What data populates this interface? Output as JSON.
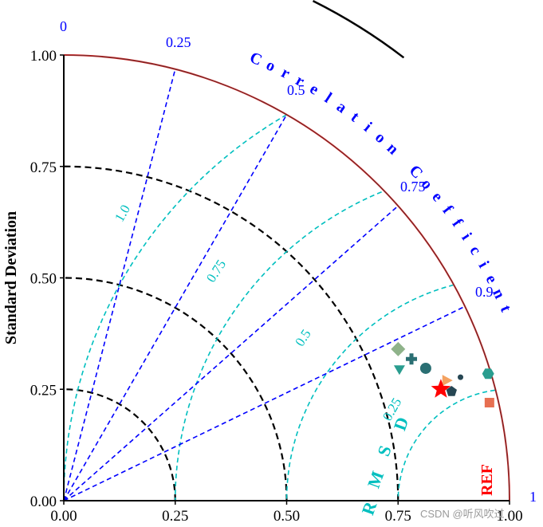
{
  "chart_data": {
    "type": "taylor_diagram",
    "ylabel": "Standard Deviation",
    "arc_label": "Correlation Coefficient",
    "rmsd_label": "RMSD",
    "ref_label": "REF",
    "xlim": [
      0,
      1.0
    ],
    "ylim": [
      0,
      1.0
    ],
    "x_ticks": [
      "0.00",
      "0.25",
      "0.50",
      "0.75",
      "1.00"
    ],
    "y_ticks": [
      "0.00",
      "0.25",
      "0.50",
      "0.75",
      "1.00"
    ],
    "x_tick_values": [
      0,
      0.25,
      0.5,
      0.75,
      1.0
    ],
    "y_tick_values": [
      0,
      0.25,
      0.5,
      0.75,
      1.0
    ],
    "correlation_ticks": [
      {
        "value": 0,
        "label": "0"
      },
      {
        "value": 0.25,
        "label": "0.25"
      },
      {
        "value": 0.5,
        "label": "0.5"
      },
      {
        "value": 0.75,
        "label": "0.75"
      },
      {
        "value": 0.9,
        "label": "0.9"
      },
      {
        "value": 1,
        "label": "1"
      }
    ],
    "std_circles": [
      0.25,
      0.5,
      0.75
    ],
    "rmsd_circles": [
      {
        "value": 0.25,
        "label": "0.25"
      },
      {
        "value": 0.5,
        "label": "0.5"
      },
      {
        "value": 0.75,
        "label": "0.75"
      },
      {
        "value": 1.0,
        "label": "1.0"
      }
    ],
    "reference": {
      "std": 1.0
    },
    "points": [
      {
        "shape": "diamond",
        "color": "#8fb38a",
        "x": 0.75,
        "y": 0.34
      },
      {
        "shape": "cross",
        "color": "#2a6f73",
        "x": 0.78,
        "y": 0.318
      },
      {
        "shape": "triangle-down",
        "color": "#2a9d8f",
        "x": 0.753,
        "y": 0.293
      },
      {
        "shape": "circle",
        "color": "#2a6f73",
        "x": 0.812,
        "y": 0.297
      },
      {
        "shape": "triangle-right",
        "color": "#f4a261",
        "x": 0.86,
        "y": 0.27
      },
      {
        "shape": "small-circle",
        "color": "#264653",
        "x": 0.89,
        "y": 0.277
      },
      {
        "shape": "pentagon",
        "color": "#264653",
        "x": 0.87,
        "y": 0.245
      },
      {
        "shape": "star",
        "color": "#ff0000",
        "x": 0.846,
        "y": 0.25
      },
      {
        "shape": "hexagon",
        "color": "#2a9d8f",
        "x": 0.952,
        "y": 0.285
      },
      {
        "shape": "square",
        "color": "#e76f51",
        "x": 0.955,
        "y": 0.22
      }
    ],
    "colors": {
      "axis": "#000000",
      "correlation": "#0000ff",
      "rmsd": "#00bfbf",
      "std": "#000000",
      "outer_arc": "#cc2222",
      "ref_label": "#ff0000"
    }
  },
  "watermark": "CSDN @听风吹过"
}
